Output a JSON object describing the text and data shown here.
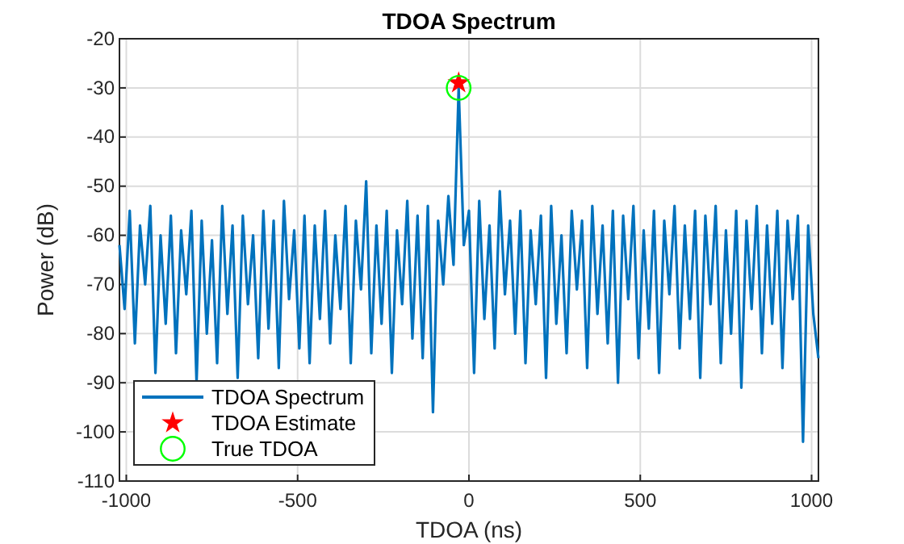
{
  "chart_data": {
    "type": "line",
    "title": "TDOA Spectrum",
    "xlabel": "TDOA (ns)",
    "ylabel": "Power (dB)",
    "xlim": [
      -1020,
      1020
    ],
    "ylim": [
      -110,
      -20
    ],
    "xticks": [
      -1000,
      -500,
      0,
      500,
      1000
    ],
    "yticks": [
      -110,
      -100,
      -90,
      -80,
      -70,
      -60,
      -50,
      -40,
      -30,
      -20
    ],
    "grid": true,
    "legend": "bottom left",
    "series": [
      {
        "name": "TDOA Spectrum",
        "color": "#0072bd",
        "marker": "none",
        "x": [
          -1020,
          -1005,
          -990,
          -975,
          -960,
          -945,
          -930,
          -915,
          -900,
          -885,
          -870,
          -855,
          -840,
          -825,
          -810,
          -795,
          -780,
          -765,
          -750,
          -735,
          -720,
          -705,
          -690,
          -675,
          -660,
          -645,
          -630,
          -615,
          -600,
          -585,
          -570,
          -555,
          -540,
          -525,
          -510,
          -495,
          -480,
          -465,
          -450,
          -435,
          -420,
          -405,
          -390,
          -375,
          -360,
          -345,
          -330,
          -315,
          -300,
          -285,
          -270,
          -255,
          -240,
          -225,
          -210,
          -195,
          -180,
          -165,
          -150,
          -135,
          -120,
          -105,
          -90,
          -75,
          -60,
          -45,
          -30,
          -15,
          0,
          15,
          30,
          45,
          60,
          75,
          90,
          105,
          120,
          135,
          150,
          165,
          180,
          195,
          210,
          225,
          240,
          255,
          270,
          285,
          300,
          315,
          330,
          345,
          360,
          375,
          390,
          405,
          420,
          435,
          450,
          465,
          480,
          495,
          510,
          525,
          540,
          555,
          570,
          585,
          600,
          615,
          630,
          645,
          660,
          675,
          690,
          705,
          720,
          735,
          750,
          765,
          780,
          795,
          810,
          825,
          840,
          855,
          870,
          885,
          900,
          915,
          930,
          945,
          960,
          975,
          990,
          1005,
          1020
        ],
        "values": [
          -62,
          -75,
          -55,
          -82,
          -58,
          -70,
          -54,
          -88,
          -60,
          -78,
          -56,
          -84,
          -59,
          -72,
          -55,
          -90,
          -57,
          -80,
          -61,
          -86,
          -54,
          -76,
          -58,
          -89,
          -56,
          -74,
          -60,
          -85,
          -55,
          -79,
          -57,
          -87,
          -53,
          -73,
          -59,
          -83,
          -56,
          -86,
          -58,
          -77,
          -55,
          -82,
          -60,
          -75,
          -54,
          -86,
          -57,
          -71,
          -49,
          -84,
          -58,
          -78,
          -55,
          -88,
          -59,
          -74,
          -53,
          -81,
          -56,
          -85,
          -54,
          -96,
          -57,
          -70,
          -52,
          -66,
          -30,
          -62,
          -55,
          -88,
          -53,
          -77,
          -58,
          -83,
          -51,
          -72,
          -57,
          -80,
          -55,
          -86,
          -59,
          -74,
          -56,
          -89,
          -54,
          -78,
          -60,
          -84,
          -55,
          -71,
          -57,
          -87,
          -54,
          -76,
          -58,
          -82,
          -55,
          -90,
          -56,
          -73,
          -54,
          -85,
          -59,
          -79,
          -55,
          -88,
          -57,
          -72,
          -54,
          -83,
          -58,
          -77,
          -55,
          -89,
          -56,
          -74,
          -54,
          -86,
          -59,
          -80,
          -55,
          -91,
          -57,
          -75,
          -54,
          -84,
          -58,
          -78,
          -55,
          -87,
          -57,
          -73,
          -56,
          -102,
          -58,
          -76,
          -85
        ]
      },
      {
        "name": "TDOA Estimate",
        "type": "scatter",
        "color": "#ff0000",
        "marker": "star",
        "x": [
          -30
        ],
        "values": [
          -29
        ]
      },
      {
        "name": "True TDOA",
        "type": "scatter",
        "color": "#00ff00",
        "marker": "circle",
        "x": [
          -30
        ],
        "values": [
          -30
        ]
      }
    ]
  }
}
